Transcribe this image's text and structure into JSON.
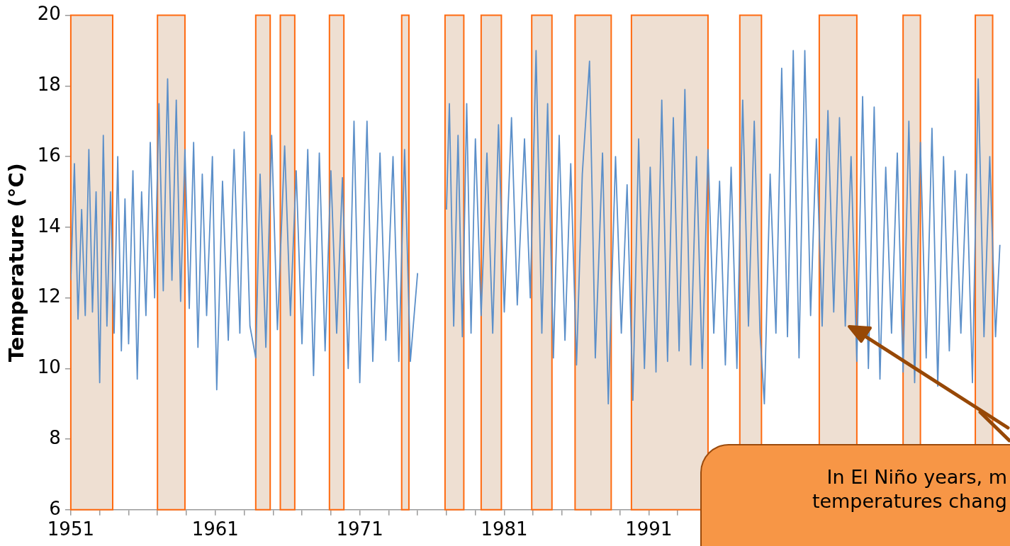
{
  "chart_data": {
    "type": "line",
    "ylabel": "Temperature (°C)",
    "xlim": [
      1951,
      2016
    ],
    "ylim": [
      6,
      20
    ],
    "yticks": [
      6,
      8,
      10,
      12,
      14,
      16,
      18,
      20
    ],
    "xticks": [
      1951,
      {
        "value": 1953,
        "label": null
      },
      {
        "value": 1955,
        "label": null
      },
      {
        "value": 1957,
        "label": null
      },
      {
        "value": 1959,
        "label": null
      },
      1961,
      {
        "value": 1963,
        "label": null
      },
      {
        "value": 1965,
        "label": null
      },
      {
        "value": 1967,
        "label": null
      },
      {
        "value": 1969,
        "label": null
      },
      1971,
      {
        "value": 1973,
        "label": null
      },
      {
        "value": 1975,
        "label": null
      },
      {
        "value": 1977,
        "label": null
      },
      {
        "value": 1979,
        "label": null
      },
      1981,
      {
        "value": 1983,
        "label": null
      },
      {
        "value": 1985,
        "label": null
      },
      {
        "value": 1987,
        "label": null
      },
      {
        "value": 1989,
        "label": null
      },
      1991,
      {
        "value": 1993,
        "label": null
      }
    ],
    "series": [
      {
        "color": "#5b8fc9",
        "x": [
          1951.0,
          1951.25,
          1951.5,
          1951.75,
          1952.0,
          1952.25,
          1952.5,
          1952.75,
          1953.0,
          1953.25,
          1953.5,
          1953.75,
          1954.0,
          1954.25,
          1954.5,
          1954.75,
          1955.0,
          1955.3,
          1955.6,
          1955.9,
          1956.2,
          1956.5,
          1956.8,
          1957.1,
          1957.4,
          1957.7,
          1958.0,
          1958.3,
          1958.6,
          1958.9,
          1959.2,
          1959.5,
          1959.8,
          1960.1,
          1960.4,
          1960.8,
          1961.1,
          1961.5,
          1961.9,
          1962.3,
          1962.7,
          1963.0,
          1963.4,
          1963.8,
          1964.1,
          1964.5,
          1964.9,
          1965.3,
          1965.8,
          1966.2,
          1966.6,
          1967.0,
          1967.4,
          1967.8,
          1968.2,
          1968.6,
          1969.0,
          1969.4,
          1969.8,
          1970.2,
          1970.6,
          1971.0,
          1971.5,
          1971.9,
          1972.4,
          1972.8,
          1973.3,
          1973.7,
          1974.1,
          1974.5,
          1975.0,
          1976.0,
          1977.0,
          1977.2,
          1977.5,
          1977.8,
          1978.1,
          1978.4,
          1978.7,
          1979.0,
          1979.4,
          1979.8,
          1980.2,
          1980.6,
          1981.0,
          1981.5,
          1981.9,
          1982.4,
          1982.8,
          1983.2,
          1983.6,
          1984.0,
          1984.4,
          1984.8,
          1985.2,
          1985.6,
          1986.0,
          1986.4,
          1986.9,
          1987.3,
          1987.8,
          1988.2,
          1988.7,
          1989.1,
          1989.5,
          1989.9,
          1990.3,
          1990.7,
          1991.1,
          1991.5,
          1991.9,
          1992.3,
          1992.7,
          1993.1,
          1993.5,
          1993.9,
          1994.3,
          1994.7,
          1995.1,
          1995.5,
          1995.9,
          1996.3,
          1996.7,
          1997.1,
          1997.5,
          1997.9,
          1998.3,
          1998.7,
          1999.0,
          1999.4,
          1999.8,
          2000.2,
          2000.6,
          2001.0,
          2001.4,
          2001.8,
          2002.2,
          2002.6,
          2003.0,
          2003.4,
          2003.8,
          2004.2,
          2004.6,
          2005.0,
          2005.4,
          2005.8,
          2006.2,
          2006.6,
          2007.0,
          2007.4,
          2007.8,
          2008.2,
          2008.6,
          2009.0,
          2009.4,
          2009.8,
          2010.2,
          2010.6,
          2011.0,
          2011.4,
          2011.8,
          2012.2,
          2012.6,
          2013.0,
          2013.4,
          2013.8,
          2014.2,
          2014.6,
          2015.0,
          2015.3
        ],
        "values": [
          12.5,
          15.8,
          11.4,
          14.5,
          11.5,
          16.2,
          11.6,
          15.0,
          9.6,
          16.6,
          11.2,
          15.0,
          11.0,
          16.0,
          10.5,
          14.8,
          10.7,
          15.6,
          9.7,
          15.0,
          11.5,
          16.4,
          12.0,
          17.5,
          12.2,
          18.2,
          12.5,
          17.6,
          11.9,
          16.2,
          11.7,
          16.4,
          10.6,
          15.5,
          11.5,
          16.0,
          9.4,
          15.3,
          10.8,
          16.2,
          11.0,
          16.7,
          11.2,
          10.3,
          15.5,
          10.6,
          16.6,
          11.1,
          16.3,
          11.5,
          15.6,
          10.7,
          16.2,
          9.8,
          16.1,
          10.5,
          15.6,
          11.0,
          15.4,
          10.0,
          17.0,
          9.6,
          17.0,
          10.2,
          16.1,
          10.8,
          16.0,
          10.2,
          16.2,
          10.2,
          12.7,
          null,
          14.5,
          17.5,
          11.2,
          16.6,
          10.9,
          17.5,
          11.0,
          16.5,
          11.5,
          16.1,
          11.0,
          16.9,
          11.6,
          17.1,
          11.8,
          16.5,
          12.0,
          19.0,
          11.0,
          17.5,
          10.3,
          16.6,
          10.8,
          15.8,
          10.1,
          15.5,
          18.7,
          10.3,
          16.1,
          9.0,
          16.0,
          11.0,
          15.2,
          9.1,
          16.5,
          10.0,
          15.7,
          9.9,
          17.6,
          10.2,
          17.1,
          10.5,
          17.9,
          10.1,
          16.0,
          10.0,
          16.2,
          11.0,
          15.3,
          10.1,
          15.7,
          10.0,
          17.6,
          11.2,
          17.0,
          11.0,
          9.0,
          15.5,
          11.0,
          18.5,
          10.9,
          19.0,
          10.3,
          19.0,
          11.5,
          16.5,
          11.2,
          17.3,
          11.6,
          17.1,
          11.2,
          16.0,
          10.2,
          17.7,
          10.0,
          17.4,
          9.7,
          15.7,
          11.0,
          16.1,
          9.9,
          17.0,
          9.6,
          16.4,
          10.3,
          16.8,
          9.5,
          16.0,
          10.5,
          15.6,
          11.0,
          15.5,
          9.6,
          18.2,
          10.9,
          16.0,
          10.9,
          13.5
        ]
      }
    ],
    "bands": [
      {
        "axis": "x",
        "from": 1951.0,
        "to": 1953.9,
        "color": "#e8d2c0"
      },
      {
        "axis": "x",
        "from": 1957.0,
        "to": 1958.9,
        "color": "#e8d2c0"
      },
      {
        "axis": "x",
        "from": 1963.8,
        "to": 1964.8,
        "color": "#e8d2c0"
      },
      {
        "axis": "x",
        "from": 1965.5,
        "to": 1966.5,
        "color": "#e8d2c0"
      },
      {
        "axis": "x",
        "from": 1968.9,
        "to": 1969.9,
        "color": "#e8d2c0"
      },
      {
        "axis": "x",
        "from": 1973.9,
        "to": 1974.4,
        "color": "#e8d2c0"
      },
      {
        "axis": "x",
        "from": 1976.9,
        "to": 1978.2,
        "color": "#e8d2c0"
      },
      {
        "axis": "x",
        "from": 1979.4,
        "to": 1980.8,
        "color": "#e8d2c0"
      },
      {
        "axis": "x",
        "from": 1982.9,
        "to": 1984.3,
        "color": "#e8d2c0"
      },
      {
        "axis": "x",
        "from": 1985.9,
        "to": 1988.4,
        "color": "#e8d2c0"
      },
      {
        "axis": "x",
        "from": 1989.8,
        "to": 1995.1,
        "color": "#e8d2c0"
      },
      {
        "axis": "x",
        "from": 1997.3,
        "to": 1998.8,
        "color": "#e8d2c0"
      },
      {
        "axis": "x",
        "from": 2002.8,
        "to": 2005.4,
        "color": "#e8d2c0"
      },
      {
        "axis": "x",
        "from": 2008.6,
        "to": 2009.8,
        "color": "#e8d2c0"
      },
      {
        "axis": "x",
        "from": 2013.6,
        "to": 2014.8,
        "color": "#e8d2c0"
      }
    ],
    "annotations": [
      "In El Niño years, m\ntemperatures chang"
    ]
  }
}
